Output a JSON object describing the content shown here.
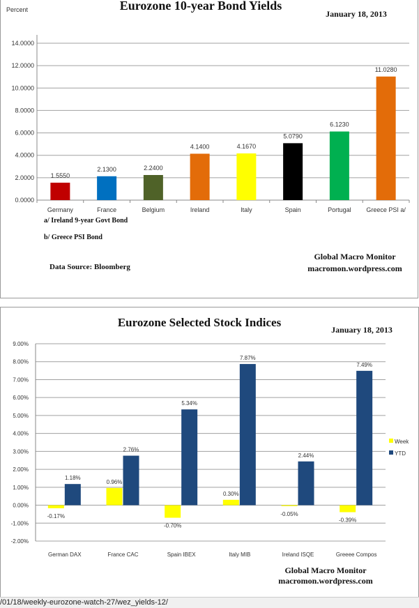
{
  "chart_data": [
    {
      "type": "bar",
      "title": "Eurozone 10-year Bond Yields",
      "date": "January 18, 2013",
      "ylabel": "Percent",
      "ylim": [
        0,
        14
      ],
      "yticks": [
        "0.0000",
        "2.0000",
        "4.0000",
        "6.0000",
        "8.0000",
        "10.0000",
        "12.0000",
        "14.0000"
      ],
      "categories": [
        "Germany",
        "France",
        "Belgium",
        "Ireland",
        "Italy",
        "Spain",
        "Portugal",
        "Greece PSI a/"
      ],
      "values": [
        1.555,
        2.13,
        2.24,
        4.14,
        4.167,
        5.079,
        6.123,
        11.028
      ],
      "labels": [
        "1.5550",
        "2.1300",
        "2.2400",
        "4.1400",
        "4.1670",
        "5.0790",
        "6.1230",
        "11.0280"
      ],
      "colors": [
        "#c00000",
        "#0070c0",
        "#4f6228",
        "#e36c09",
        "#ffff00",
        "#000000",
        "#00b050",
        "#e36c09"
      ],
      "grid": true,
      "notes": [
        "a/ Ireland 9-year Govt Bond",
        "b/ Greece PSI Bond"
      ],
      "source": "Data Source:  Bloomberg",
      "credit": [
        "Global Macro Monitor",
        "macromon.wordpress.com"
      ]
    },
    {
      "type": "bar",
      "title": "Eurozone Selected Stock Indices",
      "date": "January 18, 2013",
      "ylim": [
        -2,
        9
      ],
      "yticks": [
        "-2.00%",
        "-1.00%",
        "0.00%",
        "1.00%",
        "2.00%",
        "3.00%",
        "4.00%",
        "5.00%",
        "6.00%",
        "7.00%",
        "8.00%",
        "9.00%"
      ],
      "categories": [
        "German DAX",
        "France CAC",
        "Spain IBEX",
        "Italy MIB",
        "Ireland ISQE",
        "Greeee Compos"
      ],
      "series": [
        {
          "name": "Week",
          "color": "#ffff00",
          "values": [
            -0.17,
            0.96,
            -0.7,
            0.3,
            -0.05,
            -0.39
          ],
          "labels": [
            "-0.17%",
            "0.96%",
            "-0.70%",
            "0.30%",
            "-0.05%",
            "-0.39%"
          ]
        },
        {
          "name": "YTD",
          "color": "#1f497d",
          "values": [
            1.18,
            2.76,
            5.34,
            7.87,
            2.44,
            7.49
          ],
          "labels": [
            "1.18%",
            "2.76%",
            "5.34%",
            "7.87%",
            "2.44%",
            "7.49%"
          ]
        }
      ],
      "legend": "right",
      "grid": true,
      "credit": [
        "Global Macro Monitor",
        "macromon.wordpress.com"
      ]
    }
  ],
  "status_bar": {
    "url": "/01/18/weekly-eurozone-watch-27/wez_yields-12/"
  }
}
